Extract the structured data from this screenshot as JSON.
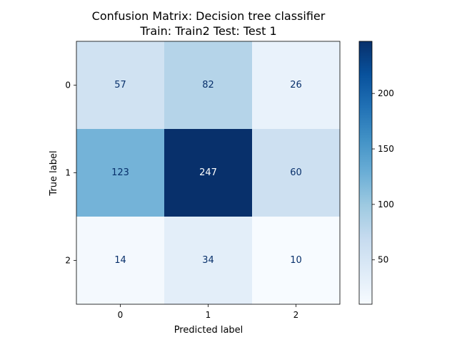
{
  "chart_data": {
    "type": "heatmap",
    "title": "Confusion Matrix: Decision tree classifier",
    "subtitle": "Train: Train2 Test: Test 1",
    "xlabel": "Predicted label",
    "ylabel": "True label",
    "x_categories": [
      "0",
      "1",
      "2"
    ],
    "y_categories": [
      "0",
      "1",
      "2"
    ],
    "matrix": [
      [
        57,
        82,
        26
      ],
      [
        123,
        247,
        60
      ],
      [
        14,
        34,
        10
      ]
    ],
    "colormap": "Blues",
    "color_range": [
      10,
      247
    ],
    "colorbar_ticks": [
      "50",
      "100",
      "150",
      "200"
    ],
    "colorbar_tick_values": [
      50,
      100,
      150,
      200
    ],
    "grid": false,
    "text_colors": {
      "light": "#ffffff",
      "dark": "#08306b"
    }
  }
}
